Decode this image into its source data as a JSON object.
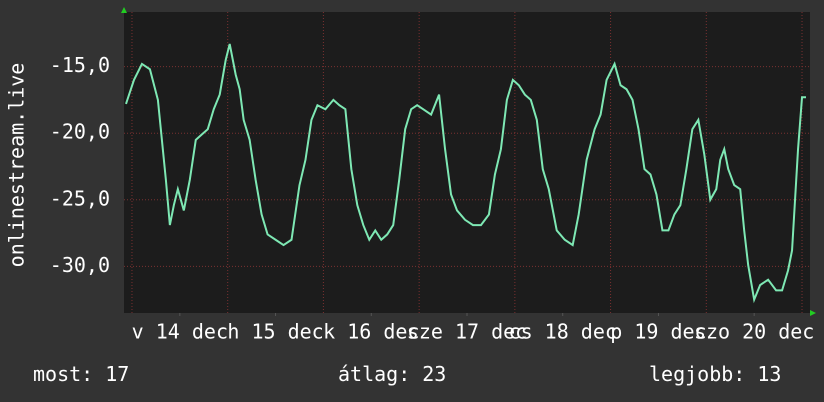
{
  "chart_data": {
    "type": "line",
    "y_label": "onlinestream.live",
    "x": [
      -1.5,
      0.5,
      2.5,
      4.5,
      6.5,
      8.5,
      9.5,
      10.5,
      11.5,
      13,
      14.5,
      16,
      17.5,
      19,
      20.5,
      22,
      23.5,
      24.5,
      26,
      27,
      28,
      29.5,
      31,
      32.5,
      34,
      36,
      38,
      40,
      42,
      43.5,
      45,
      46.5,
      48.5,
      50.5,
      52,
      53.5,
      55,
      56.5,
      58,
      59.5,
      61,
      62.5,
      64,
      65.5,
      67,
      68.5,
      70,
      71.5,
      73,
      75,
      77,
      78.5,
      80,
      81.5,
      83.5,
      85.5,
      87.5,
      89.5,
      91,
      92.5,
      94,
      95.5,
      97,
      98.5,
      100,
      101.5,
      103,
      104.5,
      106.5,
      108.5,
      110.5,
      112,
      114,
      116,
      117.5,
      119,
      121,
      122.5,
      124,
      125.5,
      127,
      128.5,
      130,
      131.5,
      133,
      134.5,
      136,
      137.5,
      139,
      140.5,
      142,
      143.5,
      145,
      146.5,
      147.5,
      148.5,
      149.5,
      151,
      152.5,
      153.5,
      154.5,
      156,
      157.5,
      159.5,
      161.5,
      163,
      164.5,
      165.5,
      167,
      168,
      169
    ],
    "series": [
      {
        "color": "#7ee8b4",
        "values": [
          -17.8,
          -16.0,
          -14.8,
          -15.2,
          -17.5,
          -23.5,
          -26.9,
          -25.4,
          -24.2,
          -25.8,
          -23.5,
          -20.5,
          -20.1,
          -19.7,
          -18.2,
          -17.1,
          -14.5,
          -13.3,
          -15.6,
          -16.7,
          -19.0,
          -20.5,
          -23.5,
          -26.1,
          -27.6,
          -28.0,
          -28.4,
          -28.0,
          -23.9,
          -22.0,
          -19.0,
          -17.9,
          -18.2,
          -17.5,
          -17.9,
          -18.2,
          -22.7,
          -25.4,
          -26.9,
          -28.0,
          -27.3,
          -28.0,
          -27.6,
          -26.9,
          -23.5,
          -19.7,
          -18.2,
          -17.9,
          -18.2,
          -18.6,
          -17.1,
          -21.2,
          -24.6,
          -25.8,
          -26.5,
          -26.9,
          -26.9,
          -26.1,
          -23.1,
          -21.2,
          -17.5,
          -16.0,
          -16.4,
          -17.1,
          -17.5,
          -19.0,
          -22.7,
          -24.2,
          -27.3,
          -28.0,
          -28.4,
          -26.1,
          -22.0,
          -19.7,
          -18.6,
          -16.0,
          -14.8,
          -16.4,
          -16.7,
          -17.5,
          -19.7,
          -22.7,
          -23.1,
          -24.6,
          -27.3,
          -27.3,
          -26.1,
          -25.4,
          -22.7,
          -19.7,
          -19.0,
          -21.6,
          -25.0,
          -24.2,
          -22.0,
          -21.2,
          -22.7,
          -23.9,
          -24.2,
          -27.3,
          -29.9,
          -32.5,
          -31.4,
          -31.0,
          -31.8,
          -31.8,
          -30.3,
          -28.8,
          -21.2,
          -17.3,
          -17.3
        ]
      }
    ],
    "xlim": [
      -2,
      170
    ],
    "xticks": [
      {
        "value": 12,
        "label": "v 14 dec"
      },
      {
        "value": 36,
        "label": "h 15 dec"
      },
      {
        "value": 60,
        "label": "k 16 dec"
      },
      {
        "value": 84,
        "label": "sze 17 dec"
      },
      {
        "value": 108,
        "label": "cs 18 dec"
      },
      {
        "value": 132,
        "label": "p 19 dec"
      },
      {
        "value": 156,
        "label": "szo 20 dec"
      }
    ],
    "xgrid": [
      0,
      24,
      48,
      72,
      96,
      120,
      144,
      168
    ],
    "ylim": [
      -33.5,
      -10.9
    ],
    "yticks": [
      {
        "value": -15,
        "label": "-15,0"
      },
      {
        "value": -20,
        "label": "-20,0"
      },
      {
        "value": -25,
        "label": "-25,0"
      },
      {
        "value": -30,
        "label": "-30,0"
      }
    ],
    "grid": true,
    "stats": [
      {
        "label": "most:",
        "value": 17
      },
      {
        "label": "átlag:",
        "value": 23
      },
      {
        "label": "legjobb:",
        "value": 13
      }
    ]
  }
}
